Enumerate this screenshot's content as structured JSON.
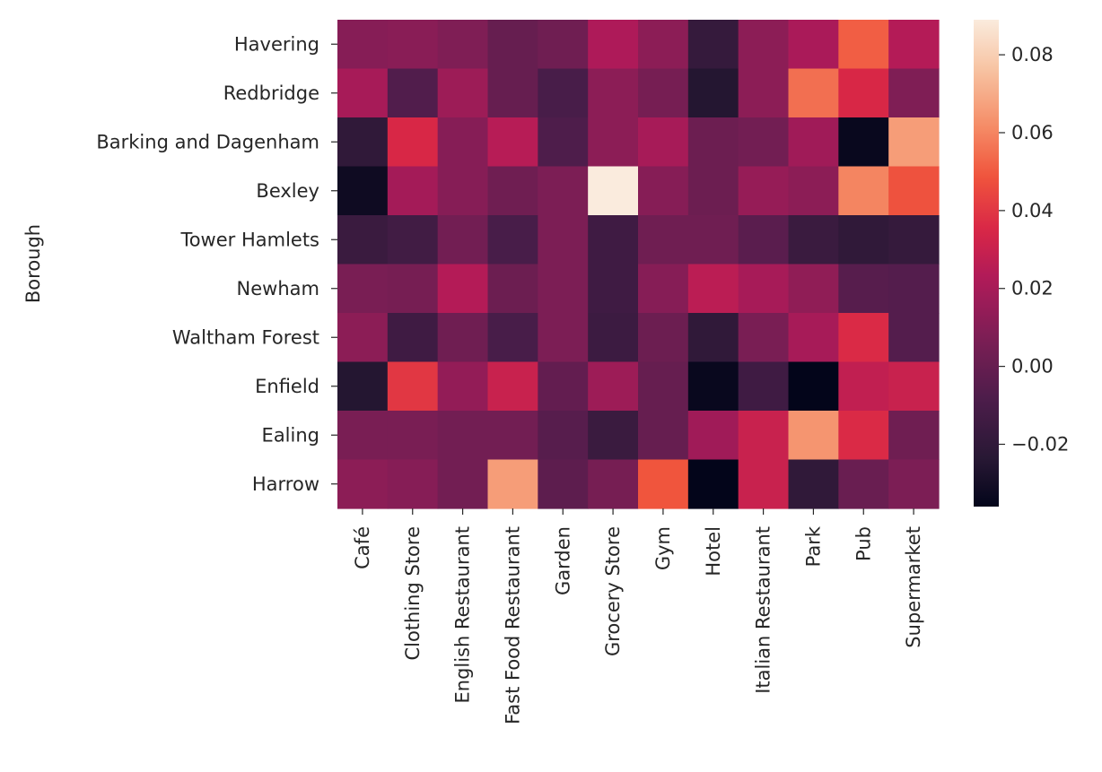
{
  "chart_data": {
    "type": "heatmap",
    "title": "",
    "xlabel": "",
    "ylabel": "Borough",
    "x_categories": [
      "Café",
      "Clothing Store",
      "English Restaurant",
      "Fast Food Restaurant",
      "Garden",
      "Grocery Store",
      "Gym",
      "Hotel",
      "Italian Restaurant",
      "Park",
      "Pub",
      "Supermarket"
    ],
    "y_categories": [
      "Havering",
      "Redbridge",
      "Barking and Dagenham",
      "Bexley",
      "Tower Hamlets",
      "Newham",
      "Waltham Forest",
      "Enfield",
      "Ealing",
      "Harrow"
    ],
    "values": [
      [
        0.01,
        0.011,
        0.008,
        0.0,
        0.003,
        0.022,
        0.012,
        -0.018,
        0.012,
        0.021,
        0.051,
        0.024
      ],
      [
        0.02,
        -0.007,
        0.017,
        0.0,
        -0.01,
        0.012,
        0.005,
        -0.025,
        0.012,
        0.055,
        0.035,
        0.008
      ],
      [
        -0.02,
        0.035,
        0.01,
        0.025,
        -0.008,
        0.012,
        0.02,
        0.002,
        0.004,
        0.018,
        -0.034,
        0.066
      ],
      [
        -0.032,
        0.019,
        0.01,
        0.003,
        0.007,
        0.089,
        0.01,
        0.002,
        0.015,
        0.012,
        0.06,
        0.048
      ],
      [
        -0.016,
        -0.013,
        0.004,
        -0.01,
        0.007,
        -0.014,
        0.003,
        0.003,
        -0.004,
        -0.016,
        -0.02,
        -0.018
      ],
      [
        0.006,
        0.005,
        0.024,
        0.002,
        0.007,
        -0.014,
        0.01,
        0.026,
        0.02,
        0.013,
        -0.005,
        -0.006
      ],
      [
        0.012,
        -0.014,
        0.003,
        -0.01,
        0.007,
        -0.015,
        0.002,
        -0.02,
        0.006,
        0.02,
        0.036,
        -0.006
      ],
      [
        -0.025,
        0.04,
        0.014,
        0.03,
        -0.001,
        0.017,
        0.0,
        -0.034,
        -0.014,
        -0.036,
        0.028,
        0.03
      ],
      [
        0.006,
        0.006,
        0.004,
        0.004,
        -0.005,
        -0.016,
        0.0,
        0.018,
        0.03,
        0.064,
        0.036,
        0.003
      ],
      [
        0.012,
        0.01,
        0.004,
        0.066,
        -0.003,
        0.005,
        0.049,
        -0.036,
        0.03,
        -0.02,
        0.001,
        0.007
      ]
    ],
    "colorbar": {
      "min": -0.036,
      "max": 0.089,
      "ticks": [
        -0.02,
        0.0,
        0.02,
        0.04,
        0.06,
        0.08
      ],
      "tick_labels": [
        "−0.02",
        "0.00",
        "0.02",
        "0.04",
        "0.06",
        "0.08"
      ]
    },
    "colormap": "rocket",
    "grid": false
  }
}
